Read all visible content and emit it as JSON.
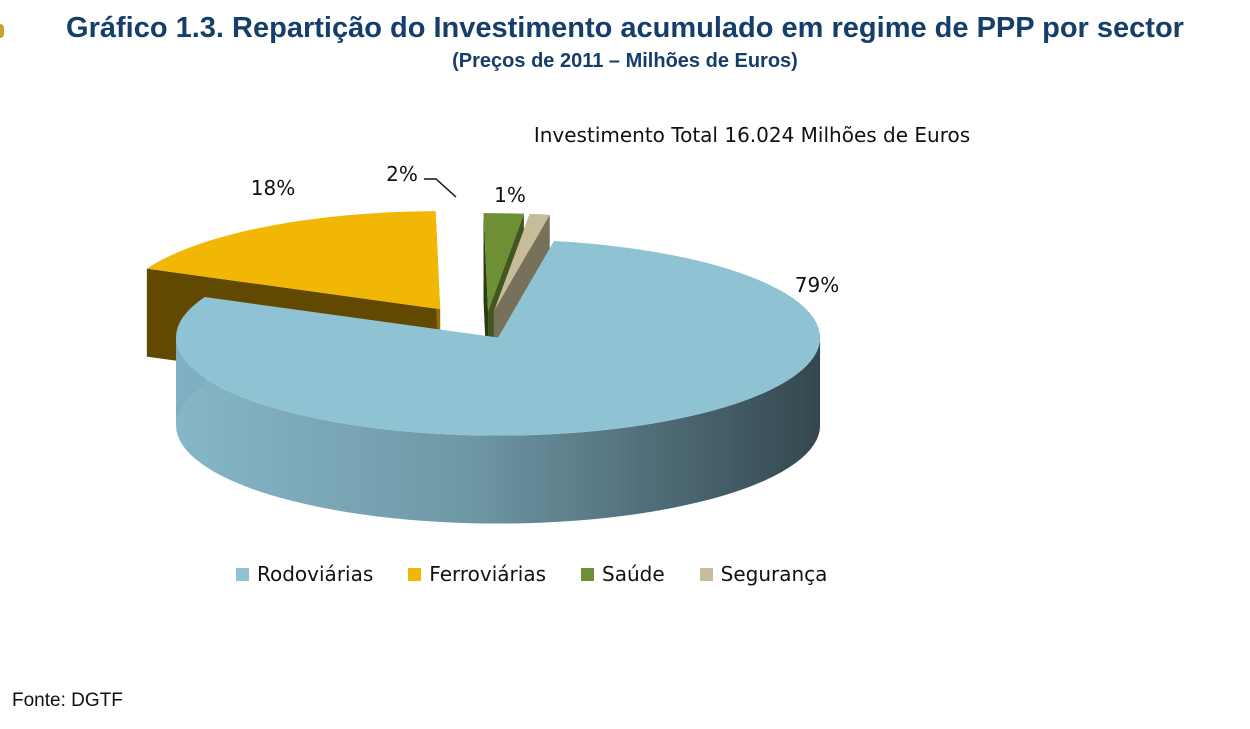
{
  "header": {
    "title": "Gráfico 1.3. Repartição do Investimento acumulado em regime de PPP por sector",
    "subtitle": "(Preços de 2011 – Milhões de Euros)"
  },
  "chart_data": {
    "type": "pie",
    "style": "3d-exploded",
    "title": "Investimento Total 16.024 Milhões de Euros",
    "legend_position": "bottom",
    "slices": [
      {
        "label": "Rodoviárias",
        "value": 79,
        "value_label": "79%",
        "color": "#8fc3d4"
      },
      {
        "label": "Ferroviárias",
        "value": 18,
        "value_label": "18%",
        "color": "#f2b705"
      },
      {
        "label": "Saúde",
        "value": 2,
        "value_label": "2%",
        "color": "#6e9035"
      },
      {
        "label": "Segurança",
        "value": 1,
        "value_label": "1%",
        "color": "#c7bc9a"
      }
    ]
  },
  "source": "Fonte: DGTF"
}
